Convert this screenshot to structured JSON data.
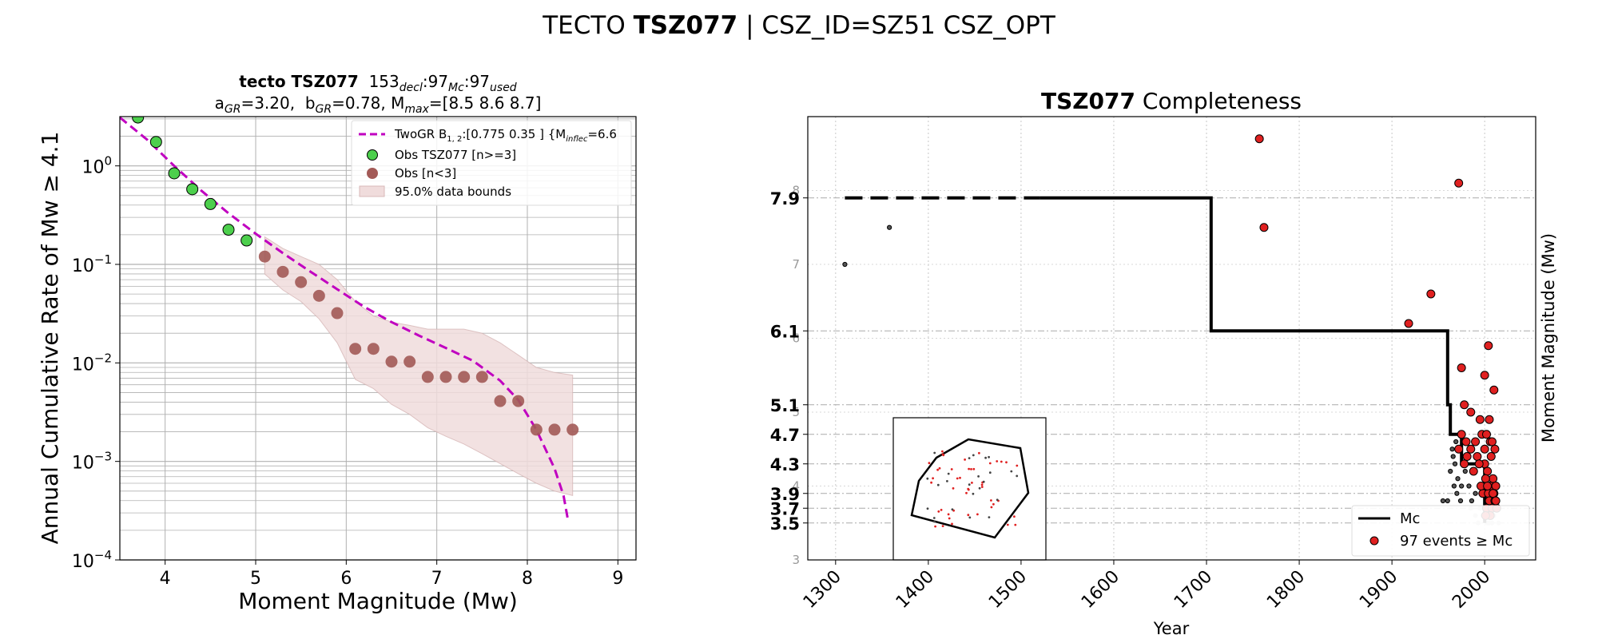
{
  "figure": {
    "suptitle": {
      "prefix": "TECTO ",
      "bold": "TSZ077",
      "suffix": " | CSZ_ID=SZ51 CSZ_OPT"
    }
  },
  "chart_data": [
    {
      "type": "scatter",
      "title_line1": {
        "bold": "tecto TSZ077",
        "n_decl": "153",
        "decl_sub": "decl",
        "n_mc": "97",
        "mc_sub": "Mc",
        "n_used": "97",
        "used_sub": "used"
      },
      "title_line2": {
        "a_label": "a",
        "a_sub": "GR",
        "a_val": "=3.20,  ",
        "b_label": "b",
        "b_sub": "GR",
        "b_val": "=0.78, M",
        "m_sub": "max",
        "m_val": "=[8.5 8.6 8.7]"
      },
      "xlabel": "Moment Magnitude (Mw)",
      "ylabel": "Annual Cumulative Rate of Mw  ≥  4.1",
      "x_ticks": [
        "4",
        "5",
        "6",
        "7",
        "8",
        "9"
      ],
      "y_ticks": [
        {
          "base": "10",
          "exp": "0",
          "value": 0
        },
        {
          "base": "10",
          "exp": "−1",
          "value": -1
        },
        {
          "base": "10",
          "exp": "−2",
          "value": -2
        },
        {
          "base": "10",
          "exp": "−3",
          "value": -3
        },
        {
          "base": "10",
          "exp": "−4",
          "value": -4
        }
      ],
      "xlim": [
        3.5,
        9.2
      ],
      "ylim_log10": [
        -4,
        0.5
      ],
      "yscale": "log",
      "grid": true,
      "legend_position": "top-right",
      "legend": [
        {
          "label_main": "TwoGR B",
          "label_sub": "1, 2",
          "label_rest": ":[0.775 0.35 ] {M",
          "label_sub2": "inflec",
          "label_end": "=6.6"
        },
        {
          "label": "Obs TSZ077 [n>=3]"
        },
        {
          "label": "Obs [n<3]"
        },
        {
          "label": "95.0% data bounds"
        }
      ],
      "colors": {
        "model": "#c000c0",
        "obs_green": "#4ccf4c",
        "obs_brown": "#a35a57",
        "band": "#f0dcdc"
      },
      "series": [
        {
          "kind": "model_line",
          "x": [
            3.5,
            3.8,
            4.1,
            4.4,
            4.7,
            5.0,
            5.3,
            5.6,
            5.9,
            6.2,
            6.5,
            6.8,
            7.1,
            7.4,
            7.7,
            7.9,
            8.1,
            8.3,
            8.4,
            8.45
          ],
          "y": [
            3.1,
            1.85,
            1.0,
            0.56,
            0.33,
            0.205,
            0.13,
            0.085,
            0.056,
            0.037,
            0.026,
            0.019,
            0.0142,
            0.0105,
            0.0066,
            0.0042,
            0.0021,
            0.00085,
            0.00045,
            0.00025
          ]
        },
        {
          "kind": "obs_ge3",
          "x": [
            3.7,
            3.9,
            4.1,
            4.3,
            4.5,
            4.7,
            4.9
          ],
          "y": [
            3.1,
            1.75,
            0.84,
            0.58,
            0.41,
            0.225,
            0.175
          ]
        },
        {
          "kind": "obs_lt3",
          "x": [
            5.1,
            5.3,
            5.5,
            5.7,
            5.9,
            6.1,
            6.3,
            6.5,
            6.7,
            6.9,
            7.1,
            7.3,
            7.5,
            7.7,
            7.9,
            8.1,
            8.3,
            8.5
          ],
          "y": [
            0.12,
            0.084,
            0.066,
            0.048,
            0.032,
            0.0139,
            0.0139,
            0.0103,
            0.0103,
            0.0072,
            0.0072,
            0.0072,
            0.0072,
            0.0041,
            0.0041,
            0.0021,
            0.0021,
            0.0021
          ]
        },
        {
          "kind": "band",
          "x": [
            5.1,
            5.3,
            5.5,
            5.7,
            5.9,
            6.1,
            6.3,
            6.5,
            6.7,
            6.9,
            7.1,
            7.3,
            7.5,
            7.7,
            7.9,
            8.1,
            8.3,
            8.5
          ],
          "upper": [
            0.19,
            0.145,
            0.12,
            0.1,
            0.07,
            0.042,
            0.03,
            0.026,
            0.024,
            0.022,
            0.022,
            0.022,
            0.02,
            0.016,
            0.012,
            0.009,
            0.008,
            0.0075
          ],
          "lower": [
            0.08,
            0.055,
            0.042,
            0.028,
            0.016,
            0.0068,
            0.0055,
            0.0038,
            0.003,
            0.0022,
            0.0018,
            0.0015,
            0.0012,
            0.00095,
            0.00075,
            0.0006,
            0.0005,
            0.00045
          ]
        }
      ]
    },
    {
      "type": "scatter",
      "title": {
        "bold": "TSZ077",
        "rest": " Completeness"
      },
      "xlabel": "Year",
      "ylabel": "Moment Magnitude (Mw)",
      "xlim": [
        1270,
        2055
      ],
      "ylim": [
        3,
        9
      ],
      "x_ticks": [
        "1300",
        "1400",
        "1500",
        "1600",
        "1700",
        "1800",
        "1900",
        "2000"
      ],
      "y_ticks_gray": [
        "3",
        "4",
        "5",
        "6",
        "7",
        "8"
      ],
      "y_ticks_bold": [
        {
          "label": "7.9",
          "value": 7.9
        },
        {
          "label": "6.1",
          "value": 6.1
        },
        {
          "label": "5.1",
          "value": 5.1
        },
        {
          "label": "4.7",
          "value": 4.7
        },
        {
          "label": "4.3",
          "value": 4.3
        },
        {
          "label": "3.9",
          "value": 3.9
        },
        {
          "label": "3.7",
          "value": 3.7
        },
        {
          "label": "3.5",
          "value": 3.5
        }
      ],
      "legend_position": "bottom-right",
      "legend": [
        {
          "label": "Mc"
        },
        {
          "label": "97 events ≥ Mc"
        }
      ],
      "mc_step": {
        "dashed": {
          "x": [
            1310,
            1520
          ],
          "y": 7.9
        },
        "solid": {
          "x": [
            1520,
            1705,
            1705,
            1960,
            1960,
            1963,
            1963,
            1975,
            1975,
            2000,
            2000
          ],
          "y": [
            7.9,
            7.9,
            6.1,
            6.1,
            5.1,
            5.1,
            4.7,
            4.7,
            4.3,
            4.3,
            3.5
          ]
        }
      },
      "events_red": [
        [
          1757,
          8.7
        ],
        [
          1762,
          7.5
        ],
        [
          1972,
          8.1
        ],
        [
          1918,
          6.2
        ],
        [
          1942,
          6.6
        ],
        [
          1975,
          5.6
        ],
        [
          1978,
          5.1
        ],
        [
          1985,
          5.0
        ],
        [
          1995,
          4.9
        ],
        [
          2004,
          5.9
        ],
        [
          2010,
          5.3
        ],
        [
          2000,
          5.5
        ],
        [
          2005,
          4.9
        ],
        [
          1990,
          4.6
        ],
        [
          1997,
          4.7
        ],
        [
          2002,
          4.7
        ],
        [
          2006,
          4.6
        ],
        [
          1975,
          4.7
        ],
        [
          1980,
          4.6
        ],
        [
          1985,
          4.5
        ],
        [
          1992,
          4.4
        ],
        [
          2000,
          4.3
        ],
        [
          2007,
          4.4
        ],
        [
          2003,
          4.2
        ],
        [
          2009,
          4.1
        ],
        [
          1988,
          4.2
        ],
        [
          1978,
          4.3
        ],
        [
          2001,
          4.1
        ],
        [
          2006,
          4.0
        ],
        [
          2012,
          4.0
        ],
        [
          1998,
          3.9
        ],
        [
          2004,
          3.9
        ],
        [
          2010,
          3.9
        ],
        [
          2005,
          3.8
        ],
        [
          2011,
          3.8
        ],
        [
          2002,
          3.7
        ],
        [
          2008,
          3.7
        ],
        [
          2013,
          3.7
        ],
        [
          1972,
          4.5
        ],
        [
          1981,
          4.4
        ],
        [
          1994,
          4.3
        ],
        [
          2000,
          4.5
        ],
        [
          2008,
          4.6
        ],
        [
          2011,
          4.5
        ],
        [
          1996,
          4.0
        ],
        [
          2003,
          4.0
        ],
        [
          2009,
          3.9
        ],
        [
          2012,
          3.8
        ],
        [
          2006,
          3.6
        ],
        [
          2001,
          3.6
        ]
      ],
      "events_small": [
        [
          1310,
          7.0
        ],
        [
          1358,
          7.5
        ],
        [
          1965,
          4.5
        ],
        [
          1968,
          4.3
        ],
        [
          1971,
          4.1
        ],
        [
          1967,
          4.0
        ],
        [
          1960,
          3.8
        ],
        [
          1955,
          3.8
        ],
        [
          1970,
          3.9
        ],
        [
          1963,
          4.2
        ],
        [
          1975,
          4.0
        ],
        [
          1979,
          4.2
        ],
        [
          1983,
          4.0
        ],
        [
          1986,
          3.8
        ],
        [
          1974,
          3.8
        ],
        [
          1990,
          3.9
        ],
        [
          1969,
          4.6
        ],
        [
          1966,
          4.4
        ]
      ],
      "events_gray": [
        [
          1985,
          3.7
        ],
        [
          1990,
          3.6
        ],
        [
          1995,
          3.7
        ],
        [
          2000,
          3.6
        ],
        [
          2005,
          3.5
        ],
        [
          2010,
          3.6
        ],
        [
          2015,
          3.5
        ],
        [
          1993,
          3.5
        ],
        [
          2003,
          3.5
        ],
        [
          2012,
          3.7
        ],
        [
          1998,
          3.6
        ],
        [
          2008,
          3.5
        ]
      ],
      "colors": {
        "event": "#e02020",
        "step": "#000000",
        "gray_event": "#c8c8c8"
      }
    }
  ]
}
